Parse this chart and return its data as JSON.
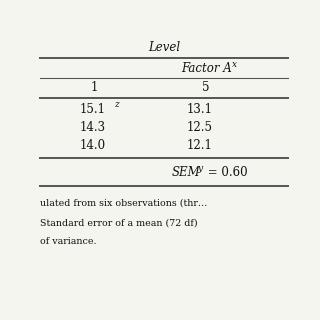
{
  "title": "Level",
  "col_headers": [
    "1",
    "5"
  ],
  "row_data": [
    [
      "15.1",
      "13.1"
    ],
    [
      "14.3",
      "12.5"
    ],
    [
      "14.0",
      "12.1"
    ]
  ],
  "footnote_lines": [
    "ulated from six observations (thr…",
    "Standard error of a mean (72 df)",
    "of variance."
  ],
  "bg_color": "#f5f5f0",
  "line_color": "#555555",
  "text_color": "#111111"
}
